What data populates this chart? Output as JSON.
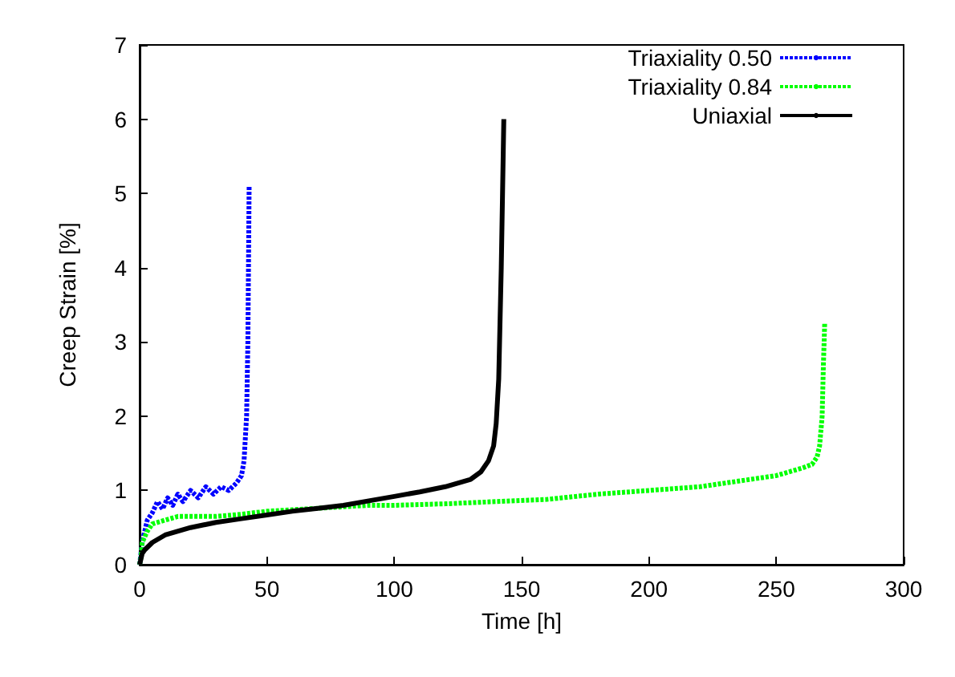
{
  "chart_data": {
    "type": "line",
    "xlabel": "Time [h]",
    "ylabel": "Creep Strain [%]",
    "xlim": [
      0,
      300
    ],
    "ylim": [
      0,
      7
    ],
    "xticks": [
      0,
      50,
      100,
      150,
      200,
      250,
      300
    ],
    "yticks": [
      0,
      1,
      2,
      3,
      4,
      5,
      6,
      7
    ],
    "grid": false,
    "legend": "top right",
    "marker": "none",
    "series": [
      {
        "name": "Triaxiality 0.50",
        "color": "#0000ff",
        "line_style": "dotted",
        "x": [
          0,
          1,
          2,
          3,
          5,
          7,
          9,
          11,
          13,
          15,
          17,
          20,
          23,
          26,
          29,
          32,
          35,
          38,
          40,
          41,
          42,
          42.5,
          43
        ],
        "values": [
          0,
          0.3,
          0.45,
          0.6,
          0.7,
          0.85,
          0.75,
          0.9,
          0.8,
          0.95,
          0.85,
          1.0,
          0.9,
          1.05,
          0.95,
          1.05,
          1.0,
          1.1,
          1.2,
          1.4,
          2.0,
          3.0,
          5.1
        ]
      },
      {
        "name": "Triaxiality 0.84",
        "color": "#00ff00",
        "line_style": "dotted",
        "x": [
          0,
          0.5,
          1,
          3,
          5,
          10,
          15,
          20,
          30,
          40,
          50,
          60,
          70,
          80,
          90,
          100,
          120,
          140,
          160,
          180,
          200,
          220,
          240,
          250,
          260,
          264,
          266,
          267,
          268,
          268.5,
          269
        ],
        "values": [
          0,
          0.1,
          0.3,
          0.45,
          0.55,
          0.6,
          0.65,
          0.65,
          0.65,
          0.68,
          0.72,
          0.74,
          0.76,
          0.78,
          0.8,
          0.8,
          0.82,
          0.85,
          0.88,
          0.95,
          1.0,
          1.05,
          1.15,
          1.2,
          1.3,
          1.35,
          1.45,
          1.6,
          2.0,
          2.7,
          3.25
        ]
      },
      {
        "name": "Uniaxial",
        "color": "#000000",
        "line_style": "solid",
        "x": [
          0,
          1,
          2,
          5,
          10,
          20,
          30,
          40,
          50,
          60,
          70,
          80,
          90,
          100,
          110,
          120,
          130,
          134,
          137,
          139,
          140,
          141,
          142,
          143
        ],
        "values": [
          0,
          0.15,
          0.2,
          0.3,
          0.4,
          0.5,
          0.57,
          0.62,
          0.67,
          0.72,
          0.76,
          0.8,
          0.86,
          0.92,
          0.98,
          1.05,
          1.15,
          1.25,
          1.4,
          1.6,
          1.9,
          2.5,
          4.0,
          6.0
        ]
      }
    ]
  }
}
